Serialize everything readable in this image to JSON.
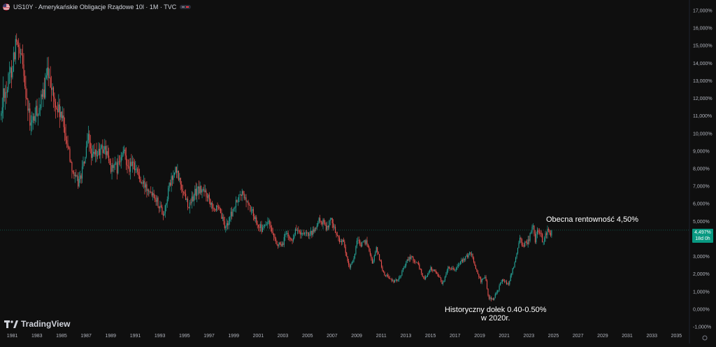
{
  "header": {
    "symbol_title": "US10Y · Amerykańskie Obligacje Rządowe 10l · 1M · TVC",
    "flag_icon": "us-flag-icon"
  },
  "brand": {
    "name": "TradingView",
    "icon": "tradingview-logo-icon"
  },
  "price_tag": {
    "value": "4,497%",
    "countdown": "18d 0h",
    "color": "#089981"
  },
  "annotations": {
    "current": "Obecna rentowność 4,50%",
    "low_line1": "Historyczny dołek 0.40-0.50%",
    "low_line2": "w 2020r."
  },
  "colors": {
    "background": "#0f0f0f",
    "up": "#26a69a",
    "down": "#ef5350",
    "text": "#d1d4dc",
    "grid": "#1a1a1a"
  },
  "chart_data": {
    "type": "candlestick",
    "interval": "1M",
    "y_axis": {
      "position": "right",
      "min": -1,
      "max": 17,
      "step": 1,
      "tick_labels": [
        "17,000%",
        "16,000%",
        "15,000%",
        "14,000%",
        "13,000%",
        "12,000%",
        "11,000%",
        "10,000%",
        "9,000%",
        "8,000%",
        "7,000%",
        "6,000%",
        "5,000%",
        "4,000%",
        "3,000%",
        "2,000%",
        "1,000%",
        "0,000%",
        "-1,000%"
      ]
    },
    "x_axis": {
      "min": 1980.5,
      "max": 2036.5,
      "tick_labels": [
        "1981",
        "1983",
        "1985",
        "1987",
        "1989",
        "1991",
        "1993",
        "1995",
        "1997",
        "1999",
        "2001",
        "2003",
        "2005",
        "2007",
        "2009",
        "2011",
        "2013",
        "2015",
        "2017",
        "2019",
        "2021",
        "2023",
        "2025",
        "2027",
        "2029",
        "2031",
        "2033",
        "2035"
      ]
    },
    "current_value": 4.497,
    "current_value_line": true,
    "yield_path": [
      [
        1980.6,
        11.0
      ],
      [
        1980.8,
        12.6
      ],
      [
        1981.0,
        12.4
      ],
      [
        1981.5,
        13.9
      ],
      [
        1981.8,
        15.3
      ],
      [
        1982.0,
        14.5
      ],
      [
        1982.4,
        13.8
      ],
      [
        1982.8,
        11.2
      ],
      [
        1983.0,
        10.4
      ],
      [
        1983.5,
        11.3
      ],
      [
        1983.9,
        11.8
      ],
      [
        1984.3,
        13.2
      ],
      [
        1984.5,
        13.6
      ],
      [
        1984.9,
        11.7
      ],
      [
        1985.4,
        11.1
      ],
      [
        1985.8,
        10.1
      ],
      [
        1986.2,
        8.6
      ],
      [
        1986.6,
        7.4
      ],
      [
        1986.9,
        7.2
      ],
      [
        1987.3,
        8.2
      ],
      [
        1987.7,
        9.7
      ],
      [
        1988.0,
        8.6
      ],
      [
        1988.5,
        8.9
      ],
      [
        1989.0,
        9.2
      ],
      [
        1989.5,
        8.1
      ],
      [
        1990.0,
        8.0
      ],
      [
        1990.6,
        8.9
      ],
      [
        1991.0,
        8.1
      ],
      [
        1991.5,
        8.2
      ],
      [
        1992.0,
        7.1
      ],
      [
        1992.5,
        7.0
      ],
      [
        1993.0,
        6.6
      ],
      [
        1993.8,
        5.4
      ],
      [
        1994.3,
        7.1
      ],
      [
        1994.8,
        7.9
      ],
      [
        1995.3,
        6.9
      ],
      [
        1995.9,
        5.8
      ],
      [
        1996.3,
        6.6
      ],
      [
        1996.7,
        6.8
      ],
      [
        1997.3,
        6.6
      ],
      [
        1997.9,
        5.8
      ],
      [
        1998.4,
        5.5
      ],
      [
        1998.8,
        4.6
      ],
      [
        1999.3,
        5.4
      ],
      [
        1999.9,
        6.3
      ],
      [
        2000.2,
        6.6
      ],
      [
        2000.8,
        5.8
      ],
      [
        2001.3,
        5.1
      ],
      [
        2001.8,
        4.5
      ],
      [
        2002.3,
        5.0
      ],
      [
        2002.8,
        3.9
      ],
      [
        2003.4,
        3.5
      ],
      [
        2003.7,
        4.3
      ],
      [
        2004.2,
        3.9
      ],
      [
        2004.6,
        4.6
      ],
      [
        2005.0,
        4.2
      ],
      [
        2005.6,
        4.2
      ],
      [
        2006.0,
        4.4
      ],
      [
        2006.5,
        5.1
      ],
      [
        2007.0,
        4.7
      ],
      [
        2007.5,
        5.1
      ],
      [
        2007.9,
        4.1
      ],
      [
        2008.4,
        3.8
      ],
      [
        2008.9,
        2.3
      ],
      [
        2009.3,
        3.0
      ],
      [
        2009.5,
        3.8
      ],
      [
        2010.0,
        3.7
      ],
      [
        2010.3,
        3.9
      ],
      [
        2010.8,
        2.6
      ],
      [
        2011.1,
        3.5
      ],
      [
        2011.7,
        2.0
      ],
      [
        2012.0,
        1.9
      ],
      [
        2012.5,
        1.5
      ],
      [
        2013.0,
        1.8
      ],
      [
        2013.5,
        2.7
      ],
      [
        2013.9,
        3.0
      ],
      [
        2014.5,
        2.5
      ],
      [
        2015.0,
        1.7
      ],
      [
        2015.5,
        2.3
      ],
      [
        2016.0,
        2.1
      ],
      [
        2016.5,
        1.4
      ],
      [
        2016.9,
        2.4
      ],
      [
        2017.5,
        2.3
      ],
      [
        2018.0,
        2.7
      ],
      [
        2018.8,
        3.2
      ],
      [
        2019.0,
        2.7
      ],
      [
        2019.6,
        1.6
      ],
      [
        2020.0,
        1.8
      ],
      [
        2020.2,
        0.7
      ],
      [
        2020.6,
        0.55
      ],
      [
        2021.0,
        1.1
      ],
      [
        2021.3,
        1.7
      ],
      [
        2021.8,
        1.4
      ],
      [
        2022.0,
        1.8
      ],
      [
        2022.5,
        3.0
      ],
      [
        2022.8,
        4.1
      ],
      [
        2023.0,
        3.6
      ],
      [
        2023.5,
        3.9
      ],
      [
        2023.8,
        4.9
      ],
      [
        2024.0,
        3.9
      ],
      [
        2024.3,
        4.6
      ],
      [
        2024.7,
        3.7
      ],
      [
        2025.0,
        4.6
      ],
      [
        2025.2,
        4.2
      ],
      [
        2025.4,
        4.5
      ]
    ]
  }
}
